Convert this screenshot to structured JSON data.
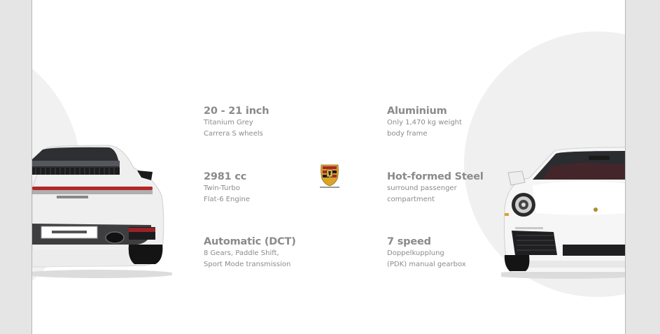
{
  "specs": [
    {
      "title": "20 - 21 inch",
      "line1": "Titanium Grey",
      "line2": "Carrera S wheels"
    },
    {
      "title": "2981 cc",
      "line1": "Twin-Turbo",
      "line2": "Flat-6 Engine"
    },
    {
      "title": "Automatic (DCT)",
      "line1": "8 Gears, Paddle Shift,",
      "line2": "Sport Mode transmission"
    },
    {
      "title": "Aluminium",
      "line1": "Only 1,470 kg weight",
      "line2": "body frame"
    },
    {
      "title": "Hot-formed Steel",
      "line1": "surround passenger",
      "line2": "compartment"
    },
    {
      "title": "7 speed",
      "line1": "Doppelkupplung",
      "line2": "(PDK) manual gearbox"
    }
  ],
  "colors": {
    "page_bg": "#e5e5e5",
    "panel_bg": "#ffffff",
    "circle_bg": "#f0f0f0",
    "text_title": "#8a8a8a",
    "text_body": "#8c8c8c",
    "car_body": "#f2f2f2",
    "taillight_red": "#b3262a"
  },
  "icons": {
    "logo": "porsche-crest-icon",
    "rear_car": "porsche-911-rear-image",
    "front_car": "porsche-911-front-image"
  }
}
